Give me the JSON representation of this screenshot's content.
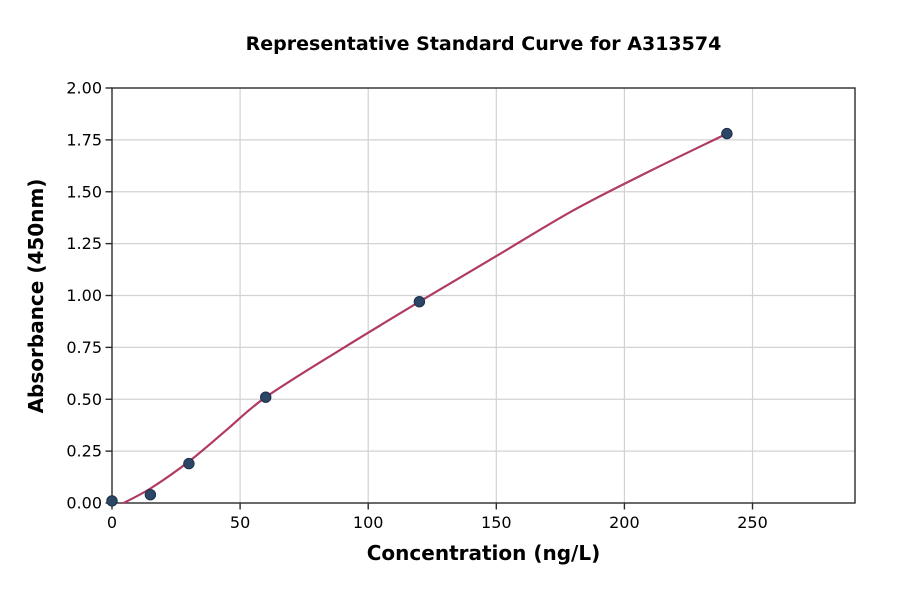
{
  "figure": {
    "background": "#ffffff"
  },
  "chart_data": {
    "type": "scatter",
    "title": "Representative Standard Curve for A313574",
    "xlabel": "Concentration (ng/L)",
    "ylabel": "Absorbance (450nm)",
    "xlim": [
      0,
      290
    ],
    "ylim": [
      0,
      2.0
    ],
    "grid": true,
    "legend": false,
    "x_ticks": [
      {
        "value": 0,
        "label": "0"
      },
      {
        "value": 50,
        "label": "50"
      },
      {
        "value": 100,
        "label": "100"
      },
      {
        "value": 150,
        "label": "150"
      },
      {
        "value": 200,
        "label": "200"
      },
      {
        "value": 250,
        "label": "250"
      }
    ],
    "y_ticks": [
      {
        "value": 0.0,
        "label": "0.00"
      },
      {
        "value": 0.25,
        "label": "0.25"
      },
      {
        "value": 0.5,
        "label": "0.50"
      },
      {
        "value": 0.75,
        "label": "0.75"
      },
      {
        "value": 1.0,
        "label": "1.00"
      },
      {
        "value": 1.25,
        "label": "1.25"
      },
      {
        "value": 1.5,
        "label": "1.50"
      },
      {
        "value": 1.75,
        "label": "1.75"
      },
      {
        "value": 2.0,
        "label": "2.00"
      }
    ],
    "points": {
      "series_name": "standard-dilution-points",
      "x": [
        0,
        15,
        30,
        60,
        120,
        240
      ],
      "y": [
        0.01,
        0.04,
        0.19,
        0.51,
        0.97,
        1.78
      ]
    },
    "fit_curve": {
      "series_name": "fitted-standard-curve",
      "x": [
        4.5,
        15,
        30,
        45,
        60,
        90,
        120,
        150,
        180,
        210,
        240
      ],
      "y": [
        0.0,
        0.07,
        0.2,
        0.355,
        0.51,
        0.745,
        0.97,
        1.19,
        1.41,
        1.6,
        1.78
      ]
    },
    "colors": {
      "curve": "#b03a63",
      "marker": "#2c4666",
      "marker_edge": "#1d2f4a",
      "grid": "#d2d2d2",
      "spine": "#2b2b2b",
      "text": "#000000",
      "background": "#ffffff"
    }
  }
}
